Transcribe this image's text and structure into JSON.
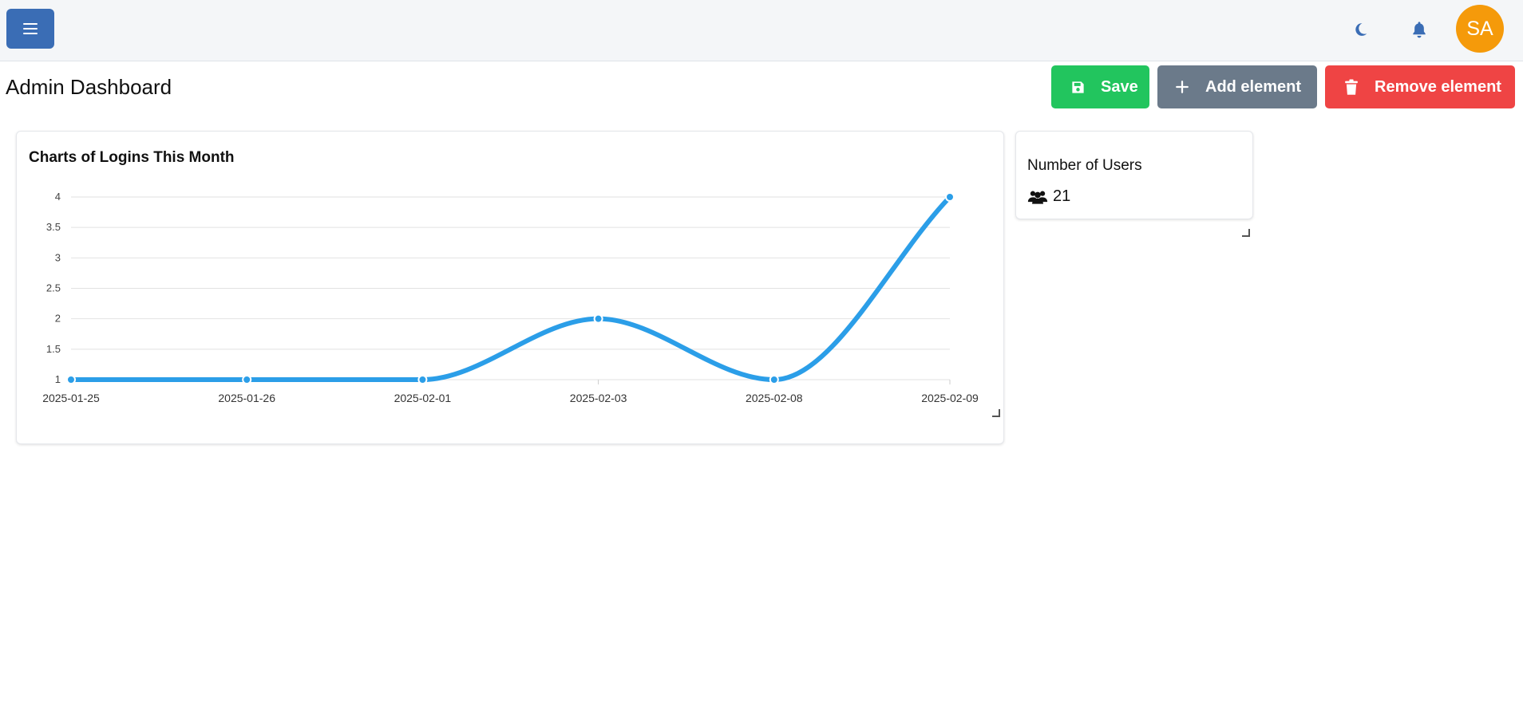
{
  "header": {
    "menu_icon": "hamburger-icon",
    "theme_icon": "moon-icon",
    "notification_icon": "bell-icon",
    "avatar_initials": "SA",
    "accent_color": "#3a6db5",
    "avatar_color": "#f59a0a"
  },
  "page": {
    "title": "Admin Dashboard"
  },
  "toolbar": {
    "save_label": "Save",
    "save_icon": "floppy-disk-icon",
    "save_color": "#22c55e",
    "add_label": "Add element",
    "add_icon": "plus-icon",
    "add_color": "#6b7a8a",
    "remove_label": "Remove element",
    "remove_icon": "trash-icon",
    "remove_color": "#ef4444"
  },
  "chart_data": {
    "type": "line",
    "title": "Charts of Logins This Month",
    "x": [
      "2025-01-25",
      "2025-01-26",
      "2025-02-01",
      "2025-02-03",
      "2025-02-08",
      "2025-02-09"
    ],
    "series": [
      {
        "values": [
          1,
          1,
          1,
          2,
          1,
          4
        ],
        "color": "#2b9ee8"
      }
    ],
    "yticks": [
      "1",
      "1.5",
      "2",
      "2.5",
      "3",
      "3.5",
      "4"
    ],
    "ylim": [
      1,
      4
    ],
    "grid": true,
    "smooth": true
  },
  "users_card": {
    "label": "Number of Users",
    "icon": "users-icon",
    "value": "21"
  }
}
